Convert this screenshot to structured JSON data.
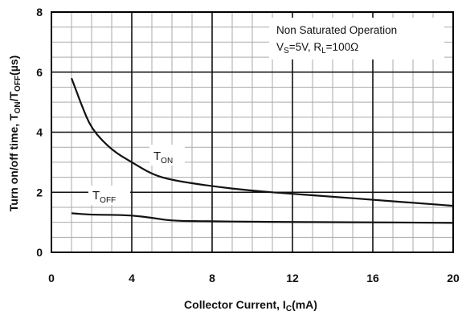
{
  "chart_data": {
    "type": "line",
    "xlabel": {
      "main": "Collector Current, I",
      "sub": "C",
      "tail": "(mA)"
    },
    "ylabel": {
      "main": "Turn on/off time, T",
      "sub1": "ON",
      "mid": "/T",
      "sub2": "OFF",
      "tail": "(µs)"
    },
    "xlim": [
      0,
      20
    ],
    "ylim": [
      0,
      8
    ],
    "xticks": [
      "0",
      "4",
      "8",
      "12",
      "16",
      "20"
    ],
    "yticks": [
      "0",
      "2",
      "4",
      "6",
      "8"
    ],
    "grid": true,
    "annotation": {
      "line1": "Non Saturated Operation",
      "line2_a": "V",
      "line2_a_sub": "S",
      "line2_b": "=5V, R",
      "line2_b_sub": "L",
      "line2_c": "=100Ω"
    },
    "series": [
      {
        "name": "T",
        "name_sub": "ON",
        "x": [
          1,
          1.5,
          2,
          3,
          4,
          5,
          6,
          8,
          10,
          12,
          14,
          16,
          18,
          20
        ],
        "y": [
          5.8,
          4.9,
          4.1,
          3.4,
          3.0,
          2.6,
          2.4,
          2.2,
          2.05,
          1.95,
          1.85,
          1.75,
          1.65,
          1.55
        ]
      },
      {
        "name": "T",
        "name_sub": "OFF",
        "x": [
          1,
          2,
          3,
          4,
          5,
          6,
          8,
          10,
          12,
          14,
          16,
          18,
          20
        ],
        "y": [
          1.3,
          1.25,
          1.25,
          1.23,
          1.15,
          1.05,
          1.03,
          1.02,
          1.01,
          1.0,
          1.0,
          0.99,
          0.98
        ]
      }
    ]
  }
}
